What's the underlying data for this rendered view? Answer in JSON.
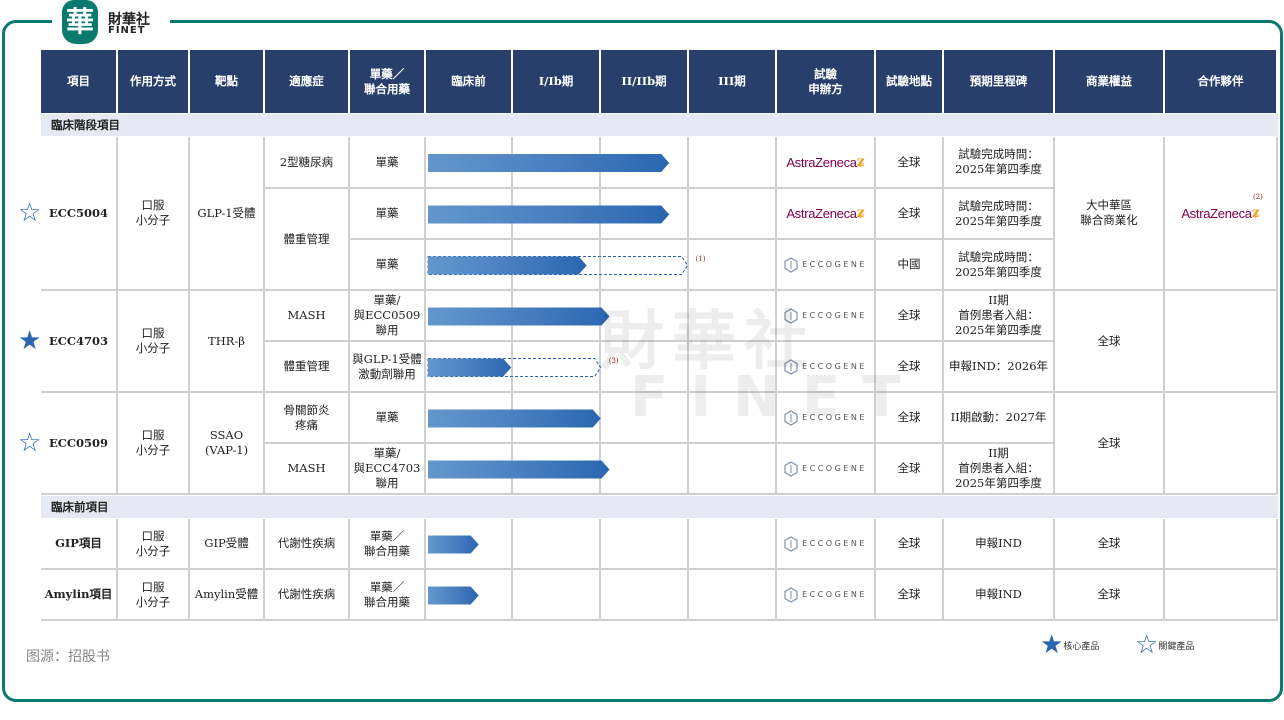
{
  "brand": {
    "logo_char": "華",
    "name_cn": "財華社",
    "name_en": "FINET"
  },
  "headers": [
    "項目",
    "作用方式",
    "靶點",
    "適應症",
    "單藥／\n聯合用藥",
    "臨床前",
    "I/Ib期",
    "II/IIb期",
    "III期",
    "試驗\n申辦方",
    "試驗地點",
    "預期里程碑",
    "商業權益",
    "合作夥伴"
  ],
  "phases": [
    "臨床前",
    "I/Ib期",
    "II/IIb期",
    "III期"
  ],
  "sections": {
    "clinical": "臨床階段項目",
    "preclinical": "臨床前項目"
  },
  "colors": {
    "header": "#283f6b",
    "bar": "#2a66b0",
    "frame": "#0a7a6e",
    "section_bg": "#e6e9f3",
    "astrazeneca": "#830051"
  },
  "groups": [
    {
      "name": "ECC5004",
      "star": "key",
      "moa": "口服\n小分子",
      "target": "GLP-1受體",
      "indications": [
        {
          "label": "2型糖尿病",
          "span": 1
        },
        {
          "label": "體重管理",
          "span": 2
        }
      ],
      "rows": [
        {
          "regimen": "單藥",
          "progress_phases": 2.77,
          "sponsor": "AstraZeneca",
          "location": "全球",
          "milestone": "試驗完成時間：\n2025年第四季度"
        },
        {
          "regimen": "單藥",
          "progress_phases": 2.77,
          "sponsor": "AstraZeneca",
          "location": "全球",
          "milestone": "試驗完成時間：\n2025年第四季度"
        },
        {
          "regimen": "單藥",
          "progress_phases": 1.83,
          "planned_phases": 2.98,
          "note": "(1)",
          "sponsor": "ECCOGENE",
          "location": "中國",
          "milestone": "試驗完成時間：\n2025年第四季度"
        }
      ],
      "rights": "大中華區\n聯合商業化",
      "partner": "AstraZeneca",
      "partner_note": "(2)"
    },
    {
      "name": "ECC4703",
      "star": "core",
      "moa": "口服\n小分子",
      "target": "THR-β",
      "indications": [
        {
          "label": "MASH",
          "span": 1
        },
        {
          "label": "體重管理",
          "span": 1
        }
      ],
      "rows": [
        {
          "regimen": "單藥/\n與ECC0509\n聯用",
          "progress_phases": 2.09,
          "sponsor": "ECCOGENE",
          "location": "全球",
          "milestone": "II期\n首例患者入組：\n2025年第四季度"
        },
        {
          "regimen": "與GLP-1受體\n激動劑聯用",
          "progress_phases": 0.97,
          "planned_phases": 1.99,
          "note": "(3)",
          "sponsor": "ECCOGENE",
          "location": "全球",
          "milestone": "申報IND：2026年"
        }
      ],
      "rights": "全球",
      "partner": ""
    },
    {
      "name": "ECC0509",
      "star": "key",
      "moa": "口服\n小分子",
      "target": "SSAO\n(VAP-1)",
      "indications": [
        {
          "label": "骨關節炎\n疼痛",
          "span": 1
        },
        {
          "label": "MASH",
          "span": 1
        }
      ],
      "rows": [
        {
          "regimen": "單藥",
          "progress_phases": 1.99,
          "sponsor": "ECCOGENE",
          "location": "全球",
          "milestone": "II期啟動：2027年"
        },
        {
          "regimen": "單藥/\n與ECC4703\n聯用",
          "progress_phases": 2.09,
          "sponsor": "ECCOGENE",
          "location": "全球",
          "milestone": "II期\n首例患者入組：\n2025年第四季度"
        }
      ],
      "rights": "全球",
      "partner": ""
    }
  ],
  "preclinical": [
    {
      "name": "GIP項目",
      "moa": "口服\n小分子",
      "target": "GIP受體",
      "indication": "代謝性疾病",
      "regimen": "單藥／\n聯合用藥",
      "progress_phases": 0.6,
      "sponsor": "ECCOGENE",
      "location": "全球",
      "milestone": "申報IND",
      "rights": "全球",
      "partner": ""
    },
    {
      "name": "Amylin項目",
      "moa": "口服\n小分子",
      "target": "Amylin受體",
      "indication": "代謝性疾病",
      "regimen": "單藥／\n聯合用藥",
      "progress_phases": 0.6,
      "sponsor": "ECCOGENE",
      "location": "全球",
      "milestone": "申報IND",
      "rights": "全球",
      "partner": ""
    }
  ],
  "legend": {
    "core": "核心產品",
    "key": "關鍵產品"
  },
  "source": "图源：招股书",
  "watermark": {
    "cn": "財華社",
    "en": "FINET"
  }
}
